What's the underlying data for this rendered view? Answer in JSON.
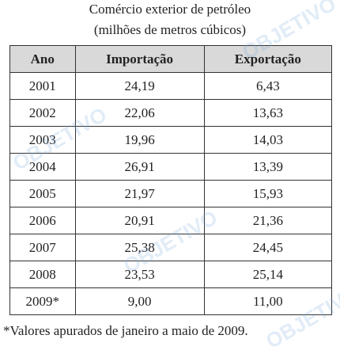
{
  "header": {
    "title": "Comércio exterior de petróleo",
    "subtitle": "(milhões de metros cúbicos)"
  },
  "table": {
    "columns": [
      "Ano",
      "Importação",
      "Exportação"
    ],
    "rows": [
      [
        "2001",
        "24,19",
        "6,43"
      ],
      [
        "2002",
        "22,06",
        "13,63"
      ],
      [
        "2003",
        "19,96",
        "14,03"
      ],
      [
        "2004",
        "26,91",
        "13,39"
      ],
      [
        "2005",
        "21,97",
        "15,93"
      ],
      [
        "2006",
        "20,91",
        "21,36"
      ],
      [
        "2007",
        "25,38",
        "24,45"
      ],
      [
        "2008",
        "23,53",
        "25,14"
      ],
      [
        "2009*",
        "9,00",
        "11,00"
      ]
    ]
  },
  "footnote": "*Valores apurados de janeiro a maio de 2009.",
  "watermark": "OBJETIVO"
}
